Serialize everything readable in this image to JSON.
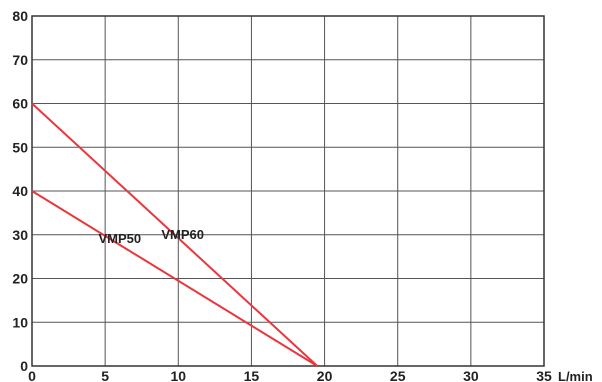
{
  "chart_data": {
    "type": "line",
    "title": "",
    "xlabel": "L/min",
    "ylabel": "",
    "xlim": [
      0,
      35
    ],
    "ylim": [
      0,
      80
    ],
    "x_ticks": [
      0,
      5,
      10,
      15,
      20,
      25,
      30,
      35
    ],
    "y_ticks": [
      0,
      10,
      20,
      30,
      40,
      50,
      60,
      70,
      80
    ],
    "grid": true,
    "line_color": "#e8383d",
    "series": [
      {
        "name": "VMP50",
        "x": [
          0,
          19.5
        ],
        "y": [
          40,
          0
        ]
      },
      {
        "name": "VMP60",
        "x": [
          0,
          19.5
        ],
        "y": [
          60,
          0
        ]
      }
    ]
  }
}
